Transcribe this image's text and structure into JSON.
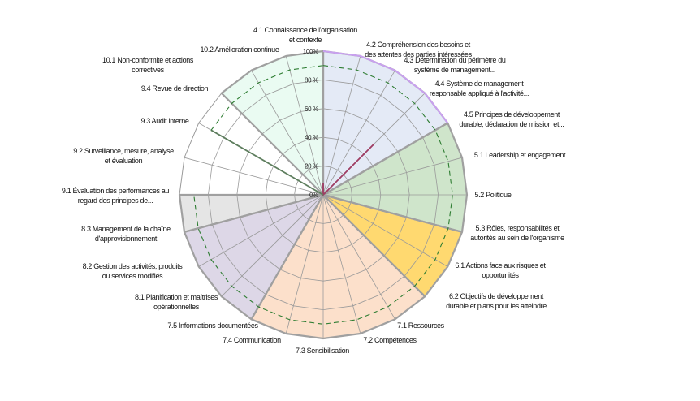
{
  "chart_data": {
    "type": "radar",
    "categories": [
      "4.1 Connaissance de l'organisation\net contexte",
      "4.2 Compréhension des besoins et\ndes attentes des parties intéressées",
      "4.3  Détermination du périmètre du\nsystème de management...",
      "4.4 Système de management\nresponsable appliqué à l'activité...",
      "4.5 Principes de développement\ndurable, déclaration de mission et...",
      "5.1 Leadership et engagement",
      "5.2 Politique",
      "5.3 Rôles, responsabilités et\nautorités au sein de l'organisme",
      "6.1 Actions face aux risques et\nopportunités",
      "6.2 Objectifs de développement\ndurable et plans pour les atteindre",
      "7.1 Ressources",
      "7.2 Compétences",
      "7.3 Sensibilisation",
      "7.4 Communication",
      "7.5 Informations documentées",
      "8.1 Planification et maîtrises\nopérationnelles",
      "8.2 Gestion des activités, produits\nou services modifiés",
      "8.3 Management de la chaîne\nd'approvisionnement",
      "9.1 Évaluation des performances au\nregard des principes de...",
      "9.2 Surveillance, mesure, analyse\net évaluation",
      "9.3 Audit interne",
      "9.4 Revue de direction",
      "10.1 Non-conformité et actions\ncorrectives",
      "10.2  Amélioration continue"
    ],
    "radial_ticks": [
      "0%",
      "20 %",
      "40 %",
      "60 %",
      "80 %",
      "100%"
    ],
    "rlim": [
      0,
      100
    ],
    "grid": true,
    "legend": "none",
    "area_series": [
      {
        "fill": "#E4EAF6",
        "stroke": "#C9A0F0",
        "values": [
          100,
          100,
          100,
          100,
          100,
          0,
          0,
          0,
          0,
          0,
          0,
          0,
          0,
          0,
          0,
          0,
          0,
          0,
          0,
          0,
          0,
          0,
          0,
          0
        ]
      },
      {
        "fill": "#CFE5CB",
        "stroke": "#A0A0A0",
        "values": [
          0,
          0,
          0,
          0,
          100,
          100,
          100,
          100,
          0,
          0,
          0,
          0,
          0,
          0,
          0,
          0,
          0,
          0,
          0,
          0,
          0,
          0,
          0,
          0
        ]
      },
      {
        "fill": "#FFD970",
        "stroke": "#A0A0A0",
        "values": [
          0,
          0,
          0,
          0,
          0,
          0,
          0,
          100,
          100,
          100,
          0,
          0,
          0,
          0,
          0,
          0,
          0,
          0,
          0,
          0,
          0,
          0,
          0,
          0
        ]
      },
      {
        "fill": "#FCE0CB",
        "stroke": "#A0A0A0",
        "values": [
          0,
          0,
          0,
          0,
          0,
          0,
          0,
          0,
          0,
          100,
          100,
          100,
          100,
          100,
          100,
          0,
          0,
          0,
          0,
          0,
          0,
          0,
          0,
          0
        ]
      },
      {
        "fill": "#DDD7E7",
        "stroke": "#A0A0A0",
        "values": [
          0,
          0,
          0,
          0,
          0,
          0,
          0,
          0,
          0,
          0,
          0,
          0,
          0,
          0,
          100,
          100,
          100,
          100,
          0,
          0,
          0,
          0,
          0,
          0
        ]
      },
      {
        "fill": "#E5E5E5",
        "stroke": "#A0A0A0",
        "values": [
          0,
          0,
          0,
          0,
          0,
          0,
          0,
          0,
          0,
          0,
          0,
          0,
          0,
          0,
          0,
          0,
          0,
          100,
          100,
          0,
          0,
          0,
          0,
          0
        ]
      },
      {
        "fill": "#EAFBF2",
        "stroke": "#A0A0A0",
        "values": [
          100,
          0,
          0,
          0,
          0,
          0,
          0,
          0,
          0,
          0,
          0,
          0,
          0,
          0,
          0,
          0,
          0,
          0,
          0,
          0,
          0,
          100,
          100,
          100
        ]
      }
    ],
    "line_series": [
      {
        "color": "#9E3B62",
        "dash": false,
        "values": [
          8,
          0,
          0,
          50,
          0,
          0,
          0,
          0,
          0,
          0,
          0,
          0,
          0,
          0,
          0,
          0,
          0,
          0,
          0,
          0,
          0,
          0,
          0,
          0
        ]
      },
      {
        "color": "#5E7E5E",
        "dash": false,
        "values": [
          0,
          0,
          0,
          0,
          0,
          0,
          0,
          0,
          0,
          0,
          0,
          0,
          0,
          0,
          0,
          0,
          0,
          0,
          0,
          0,
          90,
          0,
          0,
          0
        ]
      },
      {
        "color": "#2E7D32",
        "dash": true,
        "values": [
          90,
          90,
          90,
          90,
          90,
          90,
          90,
          90,
          90,
          90,
          90,
          90,
          90,
          90,
          90,
          90,
          90,
          90,
          90,
          null,
          90,
          90,
          90,
          90
        ]
      }
    ]
  }
}
